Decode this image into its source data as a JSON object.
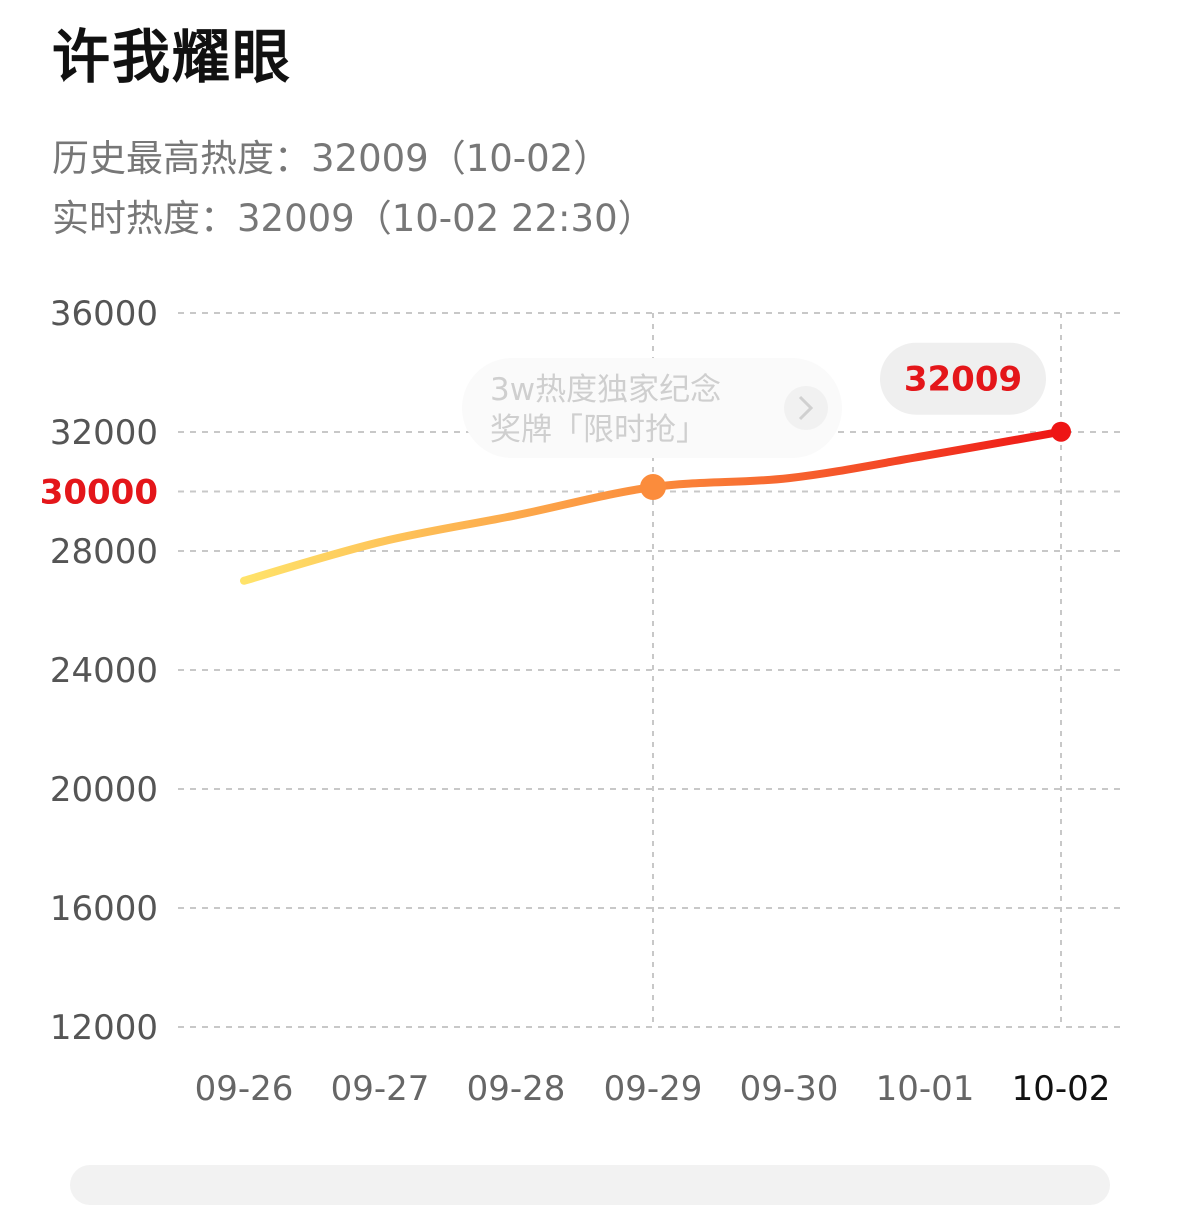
{
  "title": "许我耀眼",
  "info": {
    "peak": "历史最高热度：32009（10-02）",
    "live": "实时热度：32009（10-02 22:30）"
  },
  "promo": {
    "line1": "3w热度独家纪念",
    "line2": "奖牌「限时抢」",
    "chevron_icon": "chevron-right-icon"
  },
  "colors": {
    "line_start": "#ffe36a",
    "line_mid": "#fb8c3c",
    "line_end": "#ee1515",
    "highlight": "#e4161a",
    "grid": "#c8c8c8"
  },
  "chart_data": {
    "type": "line",
    "categories": [
      "09-26",
      "09-27",
      "09-28",
      "09-29",
      "09-30",
      "10-01",
      "10-02"
    ],
    "values": [
      27000,
      28300,
      29200,
      30150,
      30450,
      31200,
      32009
    ],
    "yticks": [
      12000,
      16000,
      20000,
      24000,
      28000,
      30000,
      32000,
      36000
    ],
    "highlight_ytick": 30000,
    "ylim": [
      12000,
      36000
    ],
    "grid": true,
    "markers": [
      {
        "category": "09-29",
        "value": 30150
      },
      {
        "category": "10-02",
        "value": 32009,
        "label": "32009"
      }
    ],
    "active_category": "10-02"
  }
}
